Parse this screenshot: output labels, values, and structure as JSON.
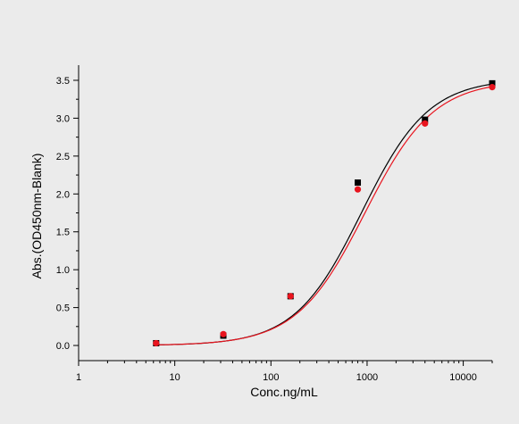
{
  "chart_data": {
    "type": "scatter",
    "xlabel": "Conc.ng/mL",
    "ylabel": "Abs.(OD450nm-Blank)",
    "x_scale": "log",
    "xlim": [
      1,
      20000
    ],
    "ylim": [
      -0.2,
      3.7
    ],
    "x_ticks": [
      1,
      10,
      100,
      1000,
      10000
    ],
    "x_tick_labels": [
      "1",
      "10",
      "100",
      "1000",
      "10000"
    ],
    "y_ticks": [
      0.0,
      0.5,
      1.0,
      1.5,
      2.0,
      2.5,
      3.0,
      3.5
    ],
    "y_tick_labels": [
      "0.0",
      "0.5",
      "1.0",
      "1.5",
      "2.0",
      "2.5",
      "3.0",
      "3.5"
    ],
    "grid": false,
    "legend": "none",
    "series": [
      {
        "color": "#000000",
        "marker": "square",
        "x": [
          6.4,
          32,
          160,
          800,
          4000,
          20000
        ],
        "y": [
          0.03,
          0.13,
          0.65,
          2.15,
          2.98,
          3.46
        ]
      },
      {
        "color": "#e8141e",
        "marker": "circle",
        "x": [
          6.4,
          32,
          160,
          800,
          4000,
          20000
        ],
        "y": [
          0.03,
          0.15,
          0.65,
          2.06,
          2.93,
          3.41
        ]
      }
    ],
    "fits": [
      {
        "color": "#000000",
        "a": 0.0,
        "d": 3.52,
        "c": 880,
        "b": 1.25
      },
      {
        "color": "#e8141e",
        "a": 0.0,
        "d": 3.5,
        "c": 950,
        "b": 1.22
      }
    ]
  }
}
